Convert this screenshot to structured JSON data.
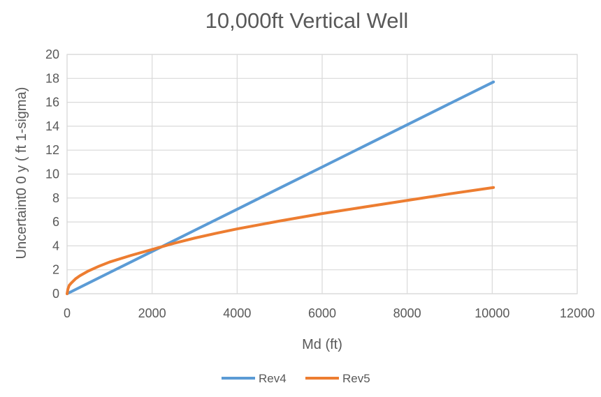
{
  "chart_data": {
    "type": "line",
    "title": "10,000ft Vertical Well",
    "xlabel": "Md (ft)",
    "ylabel": "Uncertaint0 0 y ( ft 1-sigma)",
    "xlim": [
      0,
      12000
    ],
    "ylim": [
      0,
      20
    ],
    "xticks": [
      0,
      2000,
      4000,
      6000,
      8000,
      10000,
      12000
    ],
    "yticks": [
      0,
      2,
      4,
      6,
      8,
      10,
      12,
      14,
      16,
      18,
      20
    ],
    "grid": true,
    "legend_position": "bottom",
    "series": [
      {
        "name": "Rev4",
        "color": "#5b9bd5",
        "points": [
          [
            0,
            0
          ],
          [
            1000,
            1.77
          ],
          [
            2000,
            3.53
          ],
          [
            3000,
            5.3
          ],
          [
            4000,
            7.06
          ],
          [
            5000,
            8.83
          ],
          [
            6000,
            10.59
          ],
          [
            7000,
            12.36
          ],
          [
            8000,
            14.12
          ],
          [
            9000,
            15.89
          ],
          [
            10030,
            17.7
          ]
        ]
      },
      {
        "name": "Rev5",
        "color": "#ed7d31",
        "points": [
          [
            0,
            0
          ],
          [
            20,
            0.4
          ],
          [
            50,
            0.7
          ],
          [
            100,
            0.9
          ],
          [
            200,
            1.25
          ],
          [
            300,
            1.5
          ],
          [
            500,
            1.9
          ],
          [
            750,
            2.3
          ],
          [
            1000,
            2.65
          ],
          [
            1500,
            3.2
          ],
          [
            2000,
            3.7
          ],
          [
            2500,
            4.2
          ],
          [
            3000,
            4.65
          ],
          [
            3500,
            5.05
          ],
          [
            4000,
            5.42
          ],
          [
            5000,
            6.08
          ],
          [
            6000,
            6.7
          ],
          [
            7000,
            7.25
          ],
          [
            8000,
            7.8
          ],
          [
            9000,
            8.35
          ],
          [
            10030,
            8.88
          ]
        ]
      }
    ]
  }
}
